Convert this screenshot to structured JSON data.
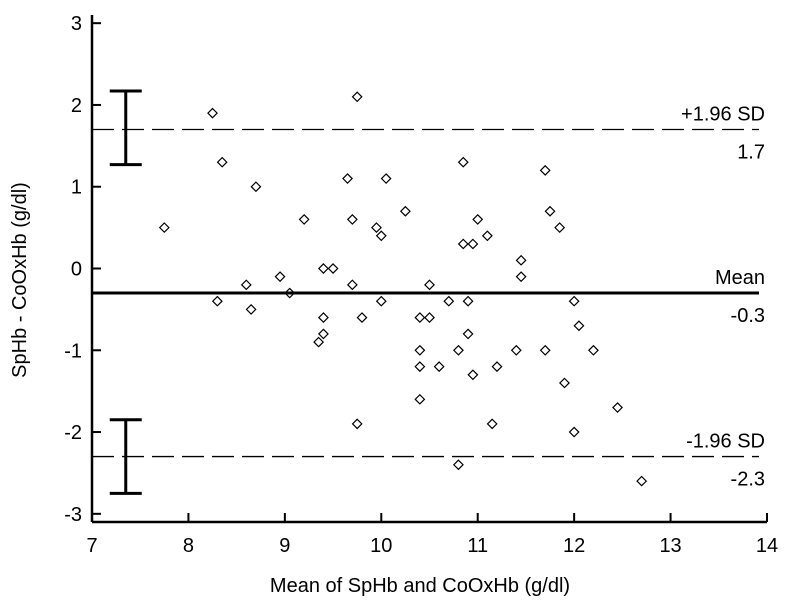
{
  "chart_data": {
    "type": "scatter",
    "title": "",
    "xlabel": "Mean of SpHb and CoOxHb (g/dl)",
    "ylabel": "SpHb - CoOxHb (g/dl)",
    "xlim": [
      7,
      14
    ],
    "ylim": [
      -3.1,
      3.1
    ],
    "xticks": [
      7,
      8,
      9,
      10,
      11,
      12,
      13,
      14
    ],
    "yticks": [
      -3,
      -2,
      -1,
      0,
      1,
      2,
      3
    ],
    "grid": false,
    "legend": "none",
    "point_color": "#000000",
    "reference_lines": [
      {
        "name": "+1.96 SD",
        "value": 1.7,
        "value_label": "1.7",
        "style": "dashed"
      },
      {
        "name": "Mean",
        "value": -0.3,
        "value_label": "-0.3",
        "style": "solid"
      },
      {
        "name": "-1.96 SD",
        "value": -2.3,
        "value_label": "-2.3",
        "style": "dashed"
      }
    ],
    "confidence_bars": [
      {
        "x": 7.35,
        "low": 1.27,
        "high": 2.17
      },
      {
        "x": 7.35,
        "low": -2.75,
        "high": -1.85
      }
    ],
    "points": [
      {
        "x": 7.75,
        "y": 0.5
      },
      {
        "x": 8.25,
        "y": 1.9
      },
      {
        "x": 8.3,
        "y": -0.4
      },
      {
        "x": 8.35,
        "y": 1.3
      },
      {
        "x": 8.6,
        "y": -0.2
      },
      {
        "x": 8.65,
        "y": -0.5
      },
      {
        "x": 8.7,
        "y": 1.0
      },
      {
        "x": 8.95,
        "y": -0.1
      },
      {
        "x": 9.05,
        "y": -0.3
      },
      {
        "x": 9.2,
        "y": 0.6
      },
      {
        "x": 9.35,
        "y": -0.9
      },
      {
        "x": 9.4,
        "y": -0.8
      },
      {
        "x": 9.4,
        "y": -0.6
      },
      {
        "x": 9.4,
        "y": 0.0
      },
      {
        "x": 9.5,
        "y": 0.0
      },
      {
        "x": 9.65,
        "y": 1.1
      },
      {
        "x": 9.7,
        "y": 0.6
      },
      {
        "x": 9.7,
        "y": -0.2
      },
      {
        "x": 9.75,
        "y": 2.1
      },
      {
        "x": 9.75,
        "y": -1.9
      },
      {
        "x": 9.8,
        "y": -0.6
      },
      {
        "x": 9.95,
        "y": 0.5
      },
      {
        "x": 10.0,
        "y": 0.4
      },
      {
        "x": 10.0,
        "y": -0.4
      },
      {
        "x": 10.05,
        "y": 1.1
      },
      {
        "x": 10.25,
        "y": 0.7
      },
      {
        "x": 10.4,
        "y": -0.6
      },
      {
        "x": 10.4,
        "y": -1.0
      },
      {
        "x": 10.4,
        "y": -1.2
      },
      {
        "x": 10.4,
        "y": -1.6
      },
      {
        "x": 10.5,
        "y": -0.2
      },
      {
        "x": 10.5,
        "y": -0.6
      },
      {
        "x": 10.6,
        "y": -1.2
      },
      {
        "x": 10.7,
        "y": -0.4
      },
      {
        "x": 10.8,
        "y": -1.0
      },
      {
        "x": 10.8,
        "y": -2.4
      },
      {
        "x": 10.85,
        "y": 1.3
      },
      {
        "x": 10.85,
        "y": 0.3
      },
      {
        "x": 10.9,
        "y": -0.4
      },
      {
        "x": 10.9,
        "y": -0.8
      },
      {
        "x": 10.95,
        "y": 0.3
      },
      {
        "x": 10.95,
        "y": -1.3
      },
      {
        "x": 11.0,
        "y": 0.6
      },
      {
        "x": 11.1,
        "y": 0.4
      },
      {
        "x": 11.15,
        "y": -1.9
      },
      {
        "x": 11.2,
        "y": -1.2
      },
      {
        "x": 11.4,
        "y": -1.0
      },
      {
        "x": 11.45,
        "y": 0.1
      },
      {
        "x": 11.45,
        "y": -0.1
      },
      {
        "x": 11.7,
        "y": 1.2
      },
      {
        "x": 11.7,
        "y": -1.0
      },
      {
        "x": 11.75,
        "y": 0.7
      },
      {
        "x": 11.85,
        "y": 0.5
      },
      {
        "x": 11.9,
        "y": -1.4
      },
      {
        "x": 12.0,
        "y": -0.4
      },
      {
        "x": 12.0,
        "y": -2.0
      },
      {
        "x": 12.05,
        "y": -0.7
      },
      {
        "x": 12.2,
        "y": -1.0
      },
      {
        "x": 12.45,
        "y": -1.7
      },
      {
        "x": 12.7,
        "y": -2.6
      }
    ]
  }
}
